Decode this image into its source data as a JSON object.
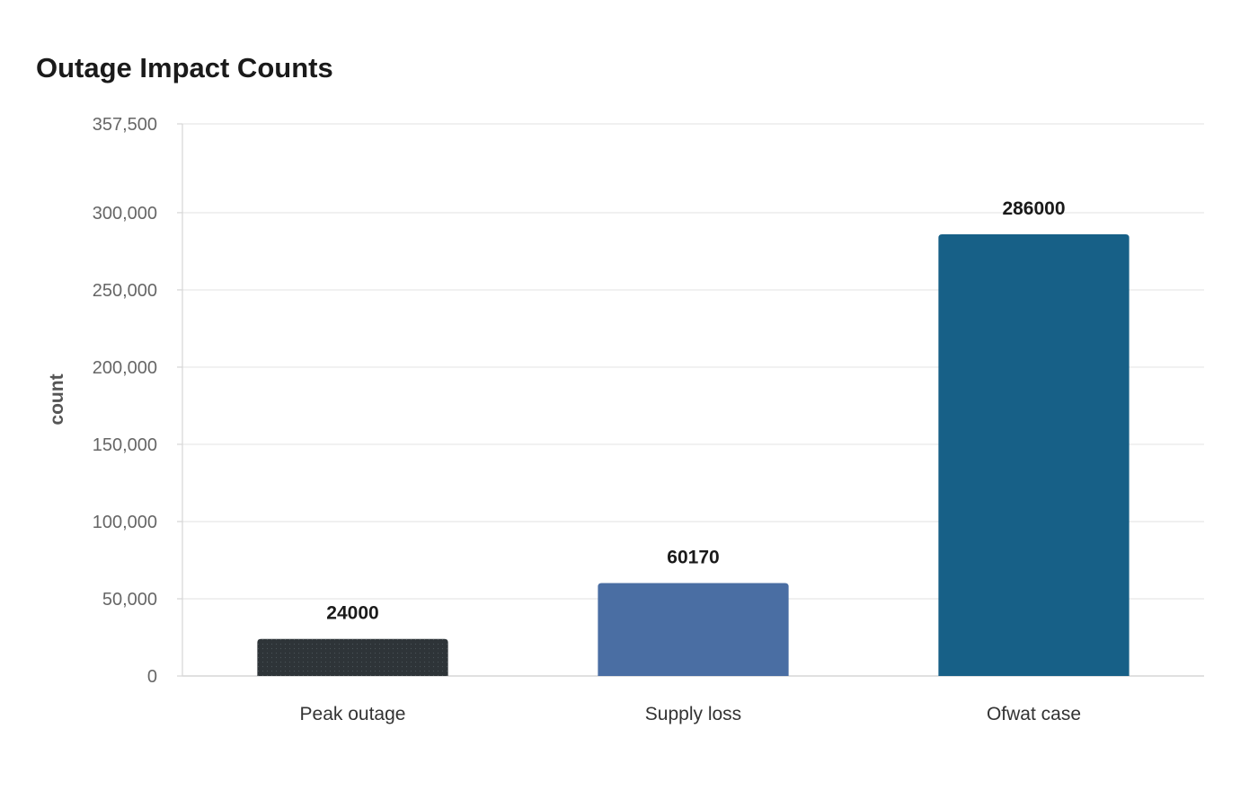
{
  "chart_data": {
    "type": "bar",
    "title": "Outage Impact Counts",
    "xlabel": "",
    "ylabel": "count",
    "categories": [
      "Peak outage",
      "Supply loss",
      "Ofwat case"
    ],
    "values": [
      24000,
      60170,
      286000
    ],
    "value_labels": [
      "24000",
      "60170",
      "286000"
    ],
    "colors": [
      "#2e3438",
      "#4a6ea3",
      "#176087"
    ],
    "ylim": [
      0,
      357500
    ],
    "yticks": [
      0,
      50000,
      100000,
      150000,
      200000,
      250000,
      300000,
      357500
    ],
    "ytick_labels": [
      "0",
      "50,000",
      "100,000",
      "150,000",
      "200,000",
      "250,000",
      "300,000",
      "357,500"
    ],
    "grid": true,
    "legend": "none"
  }
}
